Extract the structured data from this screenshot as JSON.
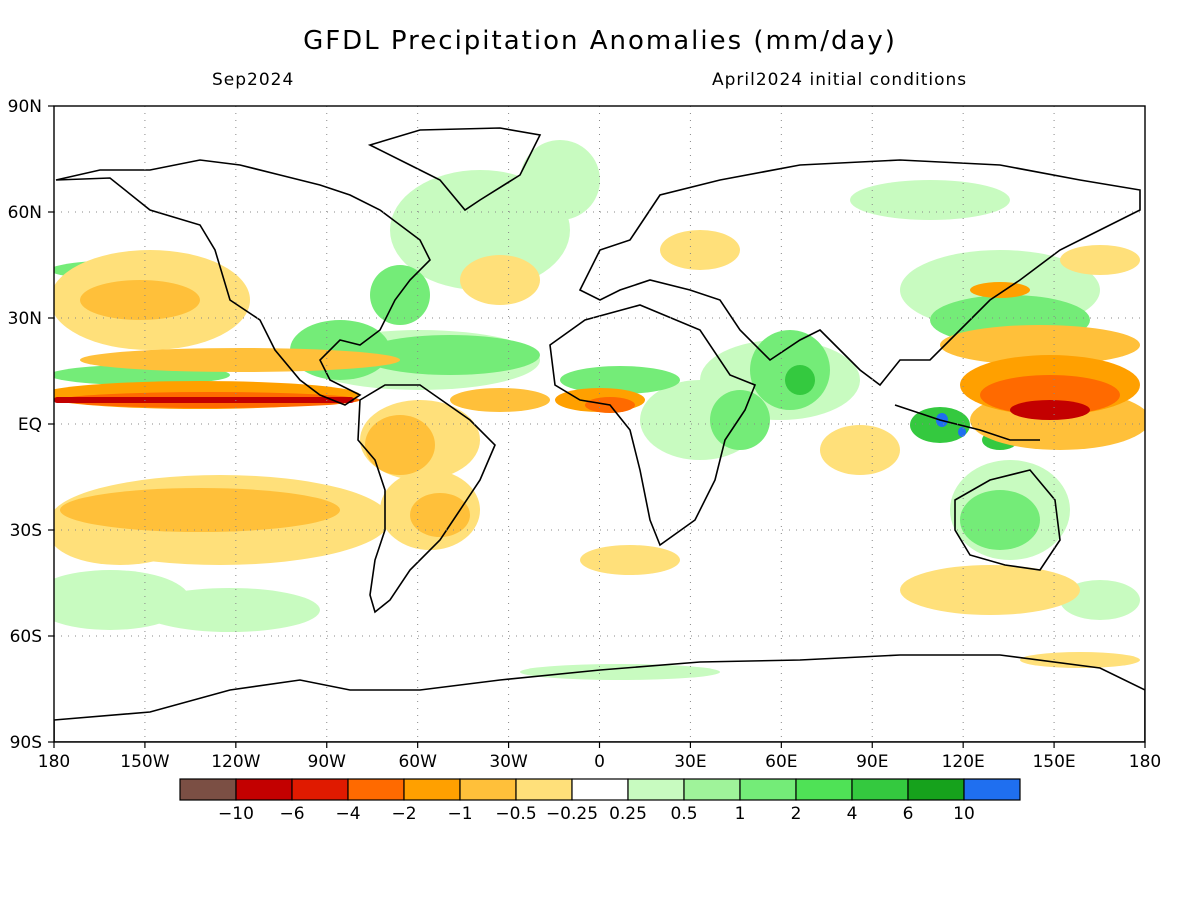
{
  "title": "GFDL Precipitation Anomalies (mm/day)",
  "subtitle_left": "Sep2024",
  "subtitle_right": "April2024 initial conditions",
  "lat_labels": [
    "90N",
    "60N",
    "30N",
    "EQ",
    "30S",
    "60S",
    "90S"
  ],
  "lon_labels": [
    "180",
    "150W",
    "120W",
    "90W",
    "60W",
    "30W",
    "0",
    "30E",
    "60E",
    "90E",
    "120E",
    "150E",
    "180"
  ],
  "colorbar": {
    "colors": [
      "#7b4f44",
      "#c30000",
      "#e01a00",
      "#ff6a00",
      "#ffa000",
      "#ffc03a",
      "#ffe07a",
      "#ffffff",
      "#c8fbc0",
      "#9ff39a",
      "#74ec78",
      "#4fe256",
      "#34c93f",
      "#16a21c",
      "#1f6ff0"
    ],
    "labels": [
      "-10",
      "-6",
      "-4",
      "-2",
      "-1",
      "-0.5",
      "-0.25",
      "0.25",
      "0.5",
      "1",
      "2",
      "4",
      "6",
      "10"
    ]
  },
  "colors": {
    "wet_light": "#c8fbc0",
    "wet_mid": "#74ec78",
    "wet_strong": "#34c93f",
    "wet_extreme": "#1f6ff0",
    "dry_light": "#ffe07a",
    "dry_mid": "#ffc03a",
    "dry_strong": "#ffa000",
    "dry_vstrong": "#ff6a00",
    "dry_extreme": "#c30000"
  }
}
